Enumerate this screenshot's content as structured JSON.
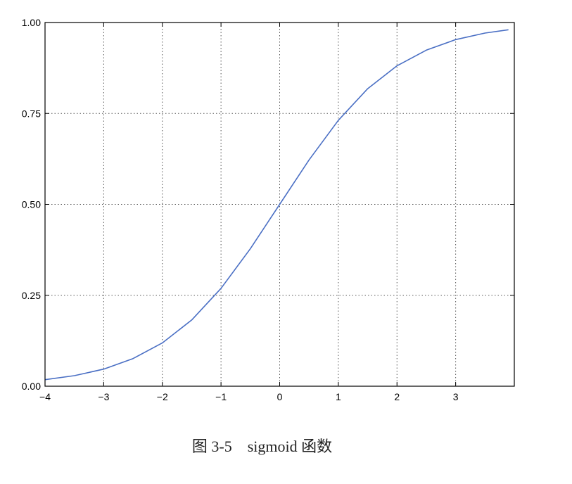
{
  "caption": "图 3-5　sigmoid 函数",
  "chart_data": {
    "type": "line",
    "title": "",
    "xlabel": "",
    "ylabel": "",
    "xlim": [
      -4,
      4
    ],
    "ylim": [
      0,
      1
    ],
    "grid": true,
    "x_ticks": [
      -4,
      -3,
      -2,
      -1,
      0,
      1,
      2,
      3
    ],
    "x_tick_labels": [
      "−4",
      "−3",
      "−2",
      "−1",
      "0",
      "1",
      "2",
      "3"
    ],
    "y_ticks": [
      0,
      0.25,
      0.5,
      0.75,
      1.0
    ],
    "y_tick_labels": [
      "0.00",
      "0.25",
      "0.50",
      "0.75",
      "1.00"
    ],
    "series": [
      {
        "color": "#4a6fc4",
        "x": [
          -4.0,
          -3.5,
          -3.0,
          -2.5,
          -2.0,
          -1.5,
          -1.0,
          -0.5,
          0.0,
          0.5,
          1.0,
          1.5,
          2.0,
          2.5,
          3.0,
          3.5,
          3.9
        ],
        "y": [
          0.018,
          0.029,
          0.047,
          0.076,
          0.119,
          0.182,
          0.269,
          0.378,
          0.5,
          0.622,
          0.731,
          0.818,
          0.881,
          0.924,
          0.953,
          0.971,
          0.98
        ]
      }
    ]
  }
}
